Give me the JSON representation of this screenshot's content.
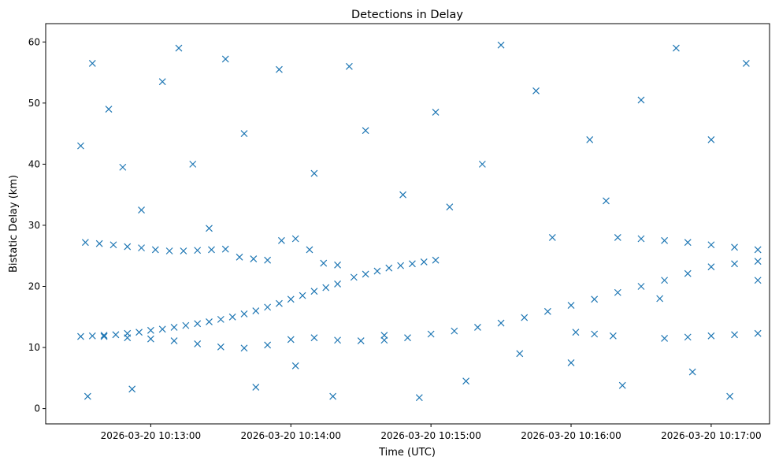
{
  "chart_data": {
    "type": "scatter",
    "title": "Detections in Delay",
    "xlabel": "Time (UTC)",
    "ylabel": "Bistatic Delay (km)",
    "marker": "x",
    "color": "#1f77b4",
    "grid": false,
    "legend": "none",
    "x_unit": "time",
    "xlim": [
      "2026-03-20 10:12:15",
      "2026-03-20 10:17:25"
    ],
    "ylim": [
      -2.5,
      63
    ],
    "x_ticks": [
      {
        "t": "2026-03-20 10:13:00",
        "label": "2026-03-20 10:13:00"
      },
      {
        "t": "2026-03-20 10:14:00",
        "label": "2026-03-20 10:14:00"
      },
      {
        "t": "2026-03-20 10:15:00",
        "label": "2026-03-20 10:15:00"
      },
      {
        "t": "2026-03-20 10:16:00",
        "label": "2026-03-20 10:16:00"
      },
      {
        "t": "2026-03-20 10:17:00",
        "label": "2026-03-20 10:17:00"
      }
    ],
    "y_ticks": [
      0,
      10,
      20,
      30,
      40,
      50,
      60
    ],
    "series": [
      {
        "points": [
          {
            "x": "2026-03-20 10:12:30",
            "y": 11.8
          },
          {
            "x": "2026-03-20 10:12:35",
            "y": 11.9
          },
          {
            "x": "2026-03-20 10:12:40",
            "y": 12.0
          },
          {
            "x": "2026-03-20 10:12:45",
            "y": 12.1
          },
          {
            "x": "2026-03-20 10:12:50",
            "y": 12.3
          },
          {
            "x": "2026-03-20 10:12:55",
            "y": 12.5
          },
          {
            "x": "2026-03-20 10:13:00",
            "y": 12.8
          },
          {
            "x": "2026-03-20 10:13:05",
            "y": 13.0
          },
          {
            "x": "2026-03-20 10:13:10",
            "y": 13.3
          },
          {
            "x": "2026-03-20 10:13:15",
            "y": 13.6
          },
          {
            "x": "2026-03-20 10:13:20",
            "y": 13.9
          },
          {
            "x": "2026-03-20 10:13:25",
            "y": 14.2
          },
          {
            "x": "2026-03-20 10:13:30",
            "y": 14.6
          },
          {
            "x": "2026-03-20 10:13:35",
            "y": 15.0
          },
          {
            "x": "2026-03-20 10:13:40",
            "y": 15.5
          },
          {
            "x": "2026-03-20 10:13:45",
            "y": 16.0
          },
          {
            "x": "2026-03-20 10:13:50",
            "y": 16.6
          },
          {
            "x": "2026-03-20 10:13:55",
            "y": 17.2
          },
          {
            "x": "2026-03-20 10:14:00",
            "y": 17.9
          },
          {
            "x": "2026-03-20 10:14:05",
            "y": 18.5
          },
          {
            "x": "2026-03-20 10:14:10",
            "y": 19.2
          },
          {
            "x": "2026-03-20 10:14:15",
            "y": 19.8
          },
          {
            "x": "2026-03-20 10:14:20",
            "y": 20.4
          },
          {
            "x": "2026-03-20 10:14:27",
            "y": 21.5
          },
          {
            "x": "2026-03-20 10:14:32",
            "y": 22.0
          },
          {
            "x": "2026-03-20 10:14:37",
            "y": 22.5
          },
          {
            "x": "2026-03-20 10:14:42",
            "y": 23.0
          },
          {
            "x": "2026-03-20 10:14:47",
            "y": 23.4
          },
          {
            "x": "2026-03-20 10:14:52",
            "y": 23.7
          },
          {
            "x": "2026-03-20 10:14:57",
            "y": 24.0
          },
          {
            "x": "2026-03-20 10:15:02",
            "y": 24.3
          },
          {
            "x": "2026-03-20 10:12:32",
            "y": 27.2
          },
          {
            "x": "2026-03-20 10:12:38",
            "y": 27.0
          },
          {
            "x": "2026-03-20 10:12:44",
            "y": 26.8
          },
          {
            "x": "2026-03-20 10:12:50",
            "y": 26.5
          },
          {
            "x": "2026-03-20 10:12:56",
            "y": 26.3
          },
          {
            "x": "2026-03-20 10:13:02",
            "y": 26.0
          },
          {
            "x": "2026-03-20 10:13:08",
            "y": 25.8
          },
          {
            "x": "2026-03-20 10:13:14",
            "y": 25.8
          },
          {
            "x": "2026-03-20 10:13:20",
            "y": 25.9
          },
          {
            "x": "2026-03-20 10:13:26",
            "y": 26.0
          },
          {
            "x": "2026-03-20 10:13:32",
            "y": 26.1
          },
          {
            "x": "2026-03-20 10:13:38",
            "y": 24.8
          },
          {
            "x": "2026-03-20 10:13:44",
            "y": 24.5
          },
          {
            "x": "2026-03-20 10:13:50",
            "y": 24.3
          },
          {
            "x": "2026-03-20 10:13:56",
            "y": 27.5
          },
          {
            "x": "2026-03-20 10:14:02",
            "y": 27.8
          },
          {
            "x": "2026-03-20 10:14:08",
            "y": 26.0
          },
          {
            "x": "2026-03-20 10:14:14",
            "y": 23.8
          },
          {
            "x": "2026-03-20 10:14:20",
            "y": 23.5
          },
          {
            "x": "2026-03-20 10:12:40",
            "y": 11.8
          },
          {
            "x": "2026-03-20 10:12:50",
            "y": 11.6
          },
          {
            "x": "2026-03-20 10:13:00",
            "y": 11.4
          },
          {
            "x": "2026-03-20 10:13:10",
            "y": 11.1
          },
          {
            "x": "2026-03-20 10:13:20",
            "y": 10.6
          },
          {
            "x": "2026-03-20 10:13:30",
            "y": 10.1
          },
          {
            "x": "2026-03-20 10:13:40",
            "y": 9.9
          },
          {
            "x": "2026-03-20 10:13:50",
            "y": 10.4
          },
          {
            "x": "2026-03-20 10:14:00",
            "y": 11.3
          },
          {
            "x": "2026-03-20 10:14:10",
            "y": 11.6
          },
          {
            "x": "2026-03-20 10:14:20",
            "y": 11.2
          },
          {
            "x": "2026-03-20 10:14:30",
            "y": 11.1
          },
          {
            "x": "2026-03-20 10:14:40",
            "y": 11.2
          },
          {
            "x": "2026-03-20 10:14:50",
            "y": 11.6
          },
          {
            "x": "2026-03-20 10:15:00",
            "y": 12.2
          },
          {
            "x": "2026-03-20 10:15:10",
            "y": 12.7
          },
          {
            "x": "2026-03-20 10:15:20",
            "y": 13.3
          },
          {
            "x": "2026-03-20 10:15:30",
            "y": 14.0
          },
          {
            "x": "2026-03-20 10:15:40",
            "y": 14.9
          },
          {
            "x": "2026-03-20 10:15:50",
            "y": 15.9
          },
          {
            "x": "2026-03-20 10:16:00",
            "y": 16.9
          },
          {
            "x": "2026-03-20 10:16:10",
            "y": 17.9
          },
          {
            "x": "2026-03-20 10:16:20",
            "y": 19.0
          },
          {
            "x": "2026-03-20 10:16:30",
            "y": 20.0
          },
          {
            "x": "2026-03-20 10:16:40",
            "y": 21.0
          },
          {
            "x": "2026-03-20 10:16:50",
            "y": 22.1
          },
          {
            "x": "2026-03-20 10:17:00",
            "y": 23.2
          },
          {
            "x": "2026-03-20 10:17:10",
            "y": 23.7
          },
          {
            "x": "2026-03-20 10:17:20",
            "y": 24.1
          },
          {
            "x": "2026-03-20 10:16:02",
            "y": 12.5
          },
          {
            "x": "2026-03-20 10:16:10",
            "y": 12.2
          },
          {
            "x": "2026-03-20 10:16:18",
            "y": 11.9
          },
          {
            "x": "2026-03-20 10:16:40",
            "y": 11.5
          },
          {
            "x": "2026-03-20 10:16:50",
            "y": 11.7
          },
          {
            "x": "2026-03-20 10:17:00",
            "y": 11.9
          },
          {
            "x": "2026-03-20 10:17:10",
            "y": 12.1
          },
          {
            "x": "2026-03-20 10:17:20",
            "y": 12.3
          },
          {
            "x": "2026-03-20 10:16:20",
            "y": 28.0
          },
          {
            "x": "2026-03-20 10:16:30",
            "y": 27.8
          },
          {
            "x": "2026-03-20 10:16:40",
            "y": 27.5
          },
          {
            "x": "2026-03-20 10:16:50",
            "y": 27.2
          },
          {
            "x": "2026-03-20 10:17:00",
            "y": 26.8
          },
          {
            "x": "2026-03-20 10:17:10",
            "y": 26.4
          },
          {
            "x": "2026-03-20 10:17:20",
            "y": 26.0
          },
          {
            "x": "2026-03-20 10:12:30",
            "y": 43.0
          },
          {
            "x": "2026-03-20 10:12:33",
            "y": 2.0
          },
          {
            "x": "2026-03-20 10:12:35",
            "y": 56.5
          },
          {
            "x": "2026-03-20 10:12:42",
            "y": 49.0
          },
          {
            "x": "2026-03-20 10:12:48",
            "y": 39.5
          },
          {
            "x": "2026-03-20 10:12:52",
            "y": 3.2
          },
          {
            "x": "2026-03-20 10:12:56",
            "y": 32.5
          },
          {
            "x": "2026-03-20 10:13:05",
            "y": 53.5
          },
          {
            "x": "2026-03-20 10:13:12",
            "y": 59.0
          },
          {
            "x": "2026-03-20 10:13:18",
            "y": 40.0
          },
          {
            "x": "2026-03-20 10:13:25",
            "y": 29.5
          },
          {
            "x": "2026-03-20 10:13:32",
            "y": 57.2
          },
          {
            "x": "2026-03-20 10:13:40",
            "y": 45.0
          },
          {
            "x": "2026-03-20 10:13:45",
            "y": 3.5
          },
          {
            "x": "2026-03-20 10:13:55",
            "y": 55.5
          },
          {
            "x": "2026-03-20 10:14:02",
            "y": 7.0
          },
          {
            "x": "2026-03-20 10:14:10",
            "y": 38.5
          },
          {
            "x": "2026-03-20 10:14:18",
            "y": 2.0
          },
          {
            "x": "2026-03-20 10:14:25",
            "y": 56.0
          },
          {
            "x": "2026-03-20 10:14:32",
            "y": 45.5
          },
          {
            "x": "2026-03-20 10:14:40",
            "y": 12.0
          },
          {
            "x": "2026-03-20 10:14:48",
            "y": 35.0
          },
          {
            "x": "2026-03-20 10:14:55",
            "y": 1.8
          },
          {
            "x": "2026-03-20 10:15:02",
            "y": 48.5
          },
          {
            "x": "2026-03-20 10:15:08",
            "y": 33.0
          },
          {
            "x": "2026-03-20 10:15:15",
            "y": 4.5
          },
          {
            "x": "2026-03-20 10:15:22",
            "y": 40.0
          },
          {
            "x": "2026-03-20 10:15:30",
            "y": 59.5
          },
          {
            "x": "2026-03-20 10:15:38",
            "y": 9.0
          },
          {
            "x": "2026-03-20 10:15:45",
            "y": 52.0
          },
          {
            "x": "2026-03-20 10:15:52",
            "y": 28.0
          },
          {
            "x": "2026-03-20 10:16:00",
            "y": 7.5
          },
          {
            "x": "2026-03-20 10:16:08",
            "y": 44.0
          },
          {
            "x": "2026-03-20 10:16:15",
            "y": 34.0
          },
          {
            "x": "2026-03-20 10:16:22",
            "y": 3.8
          },
          {
            "x": "2026-03-20 10:16:30",
            "y": 50.5
          },
          {
            "x": "2026-03-20 10:16:38",
            "y": 18.0
          },
          {
            "x": "2026-03-20 10:16:45",
            "y": 59.0
          },
          {
            "x": "2026-03-20 10:16:52",
            "y": 6.0
          },
          {
            "x": "2026-03-20 10:17:00",
            "y": 44.0
          },
          {
            "x": "2026-03-20 10:17:08",
            "y": 2.0
          },
          {
            "x": "2026-03-20 10:17:15",
            "y": 56.5
          },
          {
            "x": "2026-03-20 10:17:20",
            "y": 21.0
          }
        ]
      }
    ]
  }
}
